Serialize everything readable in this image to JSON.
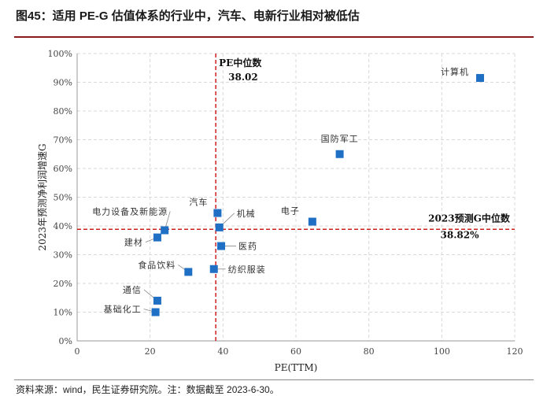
{
  "header": {
    "title": "图45：适用 PE-G 估值体系的行业中，汽车、电新行业相对被低估"
  },
  "footer": {
    "source": "资料来源：wind，民生证券研究院。注：数据截至 2023-6-30。"
  },
  "colors": {
    "marker": "#1f6fc5",
    "median_line": "#cc1f1f",
    "grid": "#d9d9d9",
    "rule": "#8b1a1a"
  },
  "chart_data": {
    "type": "scatter",
    "xlabel": "PE(TTM)",
    "ylabel": "2023年预测净利润增速G",
    "xlim": [
      0,
      120
    ],
    "ylim": [
      0,
      100
    ],
    "x_ticks": [
      "0",
      "20",
      "40",
      "60",
      "80",
      "100",
      "120"
    ],
    "y_ticks": [
      "0%",
      "10%",
      "20%",
      "30%",
      "40%",
      "50%",
      "60%",
      "70%",
      "80%",
      "90%",
      "100%"
    ],
    "grid": true,
    "points": [
      {
        "label": "计算机",
        "x": 110.5,
        "y": 91.5
      },
      {
        "label": "国防军工",
        "x": 72,
        "y": 65
      },
      {
        "label": "电子",
        "x": 64.5,
        "y": 41.5
      },
      {
        "label": "汽车",
        "x": 38.5,
        "y": 44.5
      },
      {
        "label": "机械",
        "x": 39,
        "y": 39.5
      },
      {
        "label": "电力设备及新能源",
        "x": 24,
        "y": 38.5
      },
      {
        "label": "建材",
        "x": 22,
        "y": 36
      },
      {
        "label": "医药",
        "x": 39.5,
        "y": 33
      },
      {
        "label": "纺织服装",
        "x": 37.5,
        "y": 25
      },
      {
        "label": "食品饮料",
        "x": 30.5,
        "y": 24
      },
      {
        "label": "通信",
        "x": 22,
        "y": 14
      },
      {
        "label": "基础化工",
        "x": 21.5,
        "y": 10
      }
    ],
    "median_x": {
      "value": 38.02,
      "label_line1": "PE中位数",
      "label_line2": "38.02"
    },
    "median_y": {
      "value": 38.82,
      "label_line1": "2023预测G中位数",
      "label_line2": "38.82%"
    }
  }
}
